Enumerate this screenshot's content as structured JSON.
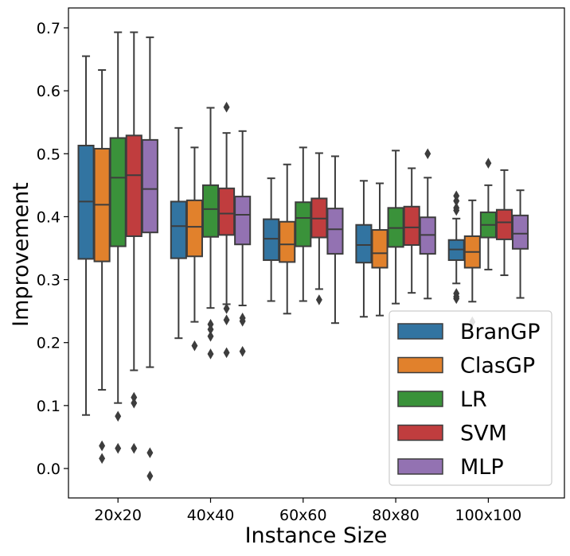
{
  "chart_data": {
    "type": "box",
    "xlabel": "Instance Size",
    "ylabel": "Improvement",
    "ylim": [
      -0.05,
      0.73
    ],
    "yticks": [
      0.0,
      0.1,
      0.2,
      0.3,
      0.4,
      0.5,
      0.6,
      0.7
    ],
    "ytick_labels": [
      "0.0",
      "0.1",
      "0.2",
      "0.3",
      "0.4",
      "0.5",
      "0.6",
      "0.7"
    ],
    "categories": [
      "20x20",
      "40x40",
      "60x60",
      "80x80",
      "100x100"
    ],
    "grid": false,
    "legend_position": "lower-right",
    "series": [
      {
        "name": "BranGP",
        "color": "#3274a1",
        "boxes": [
          {
            "whislo": 0.085,
            "q1": 0.333,
            "med": 0.424,
            "q3": 0.513,
            "whishi": 0.655,
            "fliers": []
          },
          {
            "whislo": 0.207,
            "q1": 0.334,
            "med": 0.385,
            "q3": 0.424,
            "whishi": 0.541,
            "fliers": []
          },
          {
            "whislo": 0.266,
            "q1": 0.331,
            "med": 0.365,
            "q3": 0.396,
            "whishi": 0.461,
            "fliers": []
          },
          {
            "whislo": 0.241,
            "q1": 0.327,
            "med": 0.355,
            "q3": 0.387,
            "whishi": 0.457,
            "fliers": []
          },
          {
            "whislo": 0.294,
            "q1": 0.331,
            "med": 0.348,
            "q3": 0.363,
            "whishi": 0.397,
            "fliers": [
              0.433,
              0.425,
              0.414,
              0.41,
              0.278,
              0.273,
              0.27
            ]
          }
        ]
      },
      {
        "name": "ClasGP",
        "color": "#e1812c",
        "boxes": [
          {
            "whislo": 0.125,
            "q1": 0.329,
            "med": 0.419,
            "q3": 0.508,
            "whishi": 0.633,
            "fliers": [
              0.036,
              0.016
            ]
          },
          {
            "whislo": 0.233,
            "q1": 0.337,
            "med": 0.384,
            "q3": 0.426,
            "whishi": 0.51,
            "fliers": [
              0.195
            ]
          },
          {
            "whislo": 0.246,
            "q1": 0.328,
            "med": 0.356,
            "q3": 0.392,
            "whishi": 0.483,
            "fliers": []
          },
          {
            "whislo": 0.243,
            "q1": 0.319,
            "med": 0.342,
            "q3": 0.379,
            "whishi": 0.453,
            "fliers": []
          },
          {
            "whislo": 0.265,
            "q1": 0.319,
            "med": 0.344,
            "q3": 0.369,
            "whishi": 0.426,
            "fliers": [
              0.233
            ]
          }
        ]
      },
      {
        "name": "LR",
        "color": "#3a923a",
        "boxes": [
          {
            "whislo": 0.104,
            "q1": 0.353,
            "med": 0.462,
            "q3": 0.525,
            "whishi": 0.693,
            "fliers": [
              0.083,
              0.032
            ]
          },
          {
            "whislo": 0.255,
            "q1": 0.368,
            "med": 0.412,
            "q3": 0.45,
            "whishi": 0.573,
            "fliers": [
              0.229,
              0.221,
              0.21,
              0.182
            ]
          },
          {
            "whislo": 0.266,
            "q1": 0.353,
            "med": 0.398,
            "q3": 0.423,
            "whishi": 0.51,
            "fliers": []
          },
          {
            "whislo": 0.262,
            "q1": 0.352,
            "med": 0.382,
            "q3": 0.414,
            "whishi": 0.505,
            "fliers": []
          },
          {
            "whislo": 0.316,
            "q1": 0.367,
            "med": 0.387,
            "q3": 0.407,
            "whishi": 0.45,
            "fliers": [
              0.485
            ]
          }
        ]
      },
      {
        "name": "SVM",
        "color": "#c03d3e",
        "boxes": [
          {
            "whislo": 0.156,
            "q1": 0.369,
            "med": 0.466,
            "q3": 0.529,
            "whishi": 0.693,
            "fliers": [
              0.113,
              0.104,
              0.032
            ]
          },
          {
            "whislo": 0.261,
            "q1": 0.371,
            "med": 0.405,
            "q3": 0.445,
            "whishi": 0.533,
            "fliers": [
              0.574,
              0.254,
              0.236,
              0.184
            ]
          },
          {
            "whislo": 0.285,
            "q1": 0.367,
            "med": 0.397,
            "q3": 0.429,
            "whishi": 0.501,
            "fliers": [
              0.268
            ]
          },
          {
            "whislo": 0.279,
            "q1": 0.355,
            "med": 0.383,
            "q3": 0.416,
            "whishi": 0.477,
            "fliers": []
          },
          {
            "whislo": 0.307,
            "q1": 0.364,
            "med": 0.391,
            "q3": 0.411,
            "whishi": 0.474,
            "fliers": []
          }
        ]
      },
      {
        "name": "MLP",
        "color": "#9372b2",
        "boxes": [
          {
            "whislo": 0.161,
            "q1": 0.375,
            "med": 0.444,
            "q3": 0.522,
            "whishi": 0.685,
            "fliers": [
              0.025,
              -0.012
            ]
          },
          {
            "whislo": 0.259,
            "q1": 0.356,
            "med": 0.403,
            "q3": 0.432,
            "whishi": 0.536,
            "fliers": [
              0.239,
              0.234,
              0.186
            ]
          },
          {
            "whislo": 0.231,
            "q1": 0.341,
            "med": 0.38,
            "q3": 0.413,
            "whishi": 0.496,
            "fliers": []
          },
          {
            "whislo": 0.27,
            "q1": 0.341,
            "med": 0.371,
            "q3": 0.399,
            "whishi": 0.462,
            "fliers": [
              0.5
            ]
          },
          {
            "whislo": 0.271,
            "q1": 0.349,
            "med": 0.373,
            "q3": 0.402,
            "whishi": 0.442,
            "fliers": []
          }
        ]
      }
    ]
  }
}
